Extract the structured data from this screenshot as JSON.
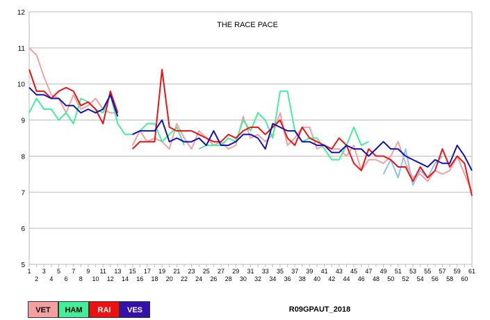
{
  "chart_data": {
    "type": "line",
    "title": "THE RACE PACE",
    "xlabel": "",
    "ylabel": "",
    "xlim": [
      1,
      61
    ],
    "ylim": [
      5,
      12
    ],
    "yticks": [
      5,
      6,
      7,
      8,
      9,
      10,
      11,
      12
    ],
    "grid": true,
    "series": [
      {
        "name": "VET",
        "color": "#f4a0a0",
        "points": [
          [
            1,
            11.0
          ],
          [
            2,
            10.8
          ],
          [
            3,
            10.2
          ],
          [
            4,
            9.7
          ],
          [
            5,
            9.6
          ],
          [
            6,
            9.2
          ],
          [
            7,
            9.7
          ],
          [
            8,
            9.3
          ],
          [
            9,
            9.4
          ],
          [
            10,
            9.6
          ],
          [
            11,
            9.3
          ],
          [
            12,
            9.2
          ],
          [
            13,
            9.2
          ],
          [
            15,
            8.3
          ],
          [
            16,
            8.7
          ],
          [
            17,
            8.4
          ],
          [
            18,
            8.5
          ],
          [
            19,
            8.4
          ],
          [
            20,
            8.2
          ],
          [
            21,
            8.9
          ],
          [
            22,
            8.5
          ],
          [
            23,
            8.2
          ],
          [
            24,
            8.7
          ],
          [
            25,
            8.5
          ],
          [
            26,
            8.3
          ],
          [
            27,
            8.4
          ],
          [
            28,
            8.2
          ],
          [
            29,
            8.3
          ],
          [
            30,
            9.1
          ],
          [
            31,
            8.5
          ],
          [
            32,
            8.6
          ],
          [
            33,
            8.4
          ],
          [
            34,
            8.6
          ],
          [
            35,
            9.2
          ],
          [
            36,
            8.3
          ],
          [
            37,
            8.5
          ],
          [
            38,
            8.8
          ],
          [
            39,
            8.8
          ],
          [
            40,
            8.2
          ],
          [
            41,
            8.3
          ],
          [
            42,
            8.2
          ],
          [
            43,
            8.2
          ],
          [
            44,
            8.0
          ],
          [
            45,
            8.3
          ],
          [
            46,
            7.6
          ],
          [
            47,
            7.9
          ],
          [
            48,
            7.9
          ],
          [
            49,
            7.8
          ],
          [
            50,
            8.0
          ],
          [
            51,
            8.4
          ],
          [
            52,
            7.8
          ],
          [
            53,
            7.4
          ],
          [
            54,
            7.5
          ],
          [
            55,
            7.3
          ],
          [
            56,
            7.6
          ],
          [
            57,
            7.5
          ],
          [
            58,
            7.6
          ],
          [
            59,
            8.0
          ],
          [
            60,
            7.5
          ],
          [
            61,
            7.0
          ]
        ]
      },
      {
        "name": "",
        "color": "#87c4f0",
        "points": [
          [
            49,
            7.5
          ],
          [
            50,
            7.9
          ],
          [
            51,
            7.4
          ],
          [
            52,
            8.2
          ],
          [
            53,
            7.2
          ],
          [
            54,
            7.6
          ],
          [
            55,
            7.4
          ],
          [
            56,
            7.8
          ],
          [
            57,
            8.0
          ]
        ]
      },
      {
        "name": "HAM",
        "color": "#44ee99",
        "points": [
          [
            1,
            9.2
          ],
          [
            2,
            9.6
          ],
          [
            3,
            9.3
          ],
          [
            4,
            9.3
          ],
          [
            5,
            9.0
          ],
          [
            6,
            9.2
          ],
          [
            7,
            8.9
          ],
          [
            8,
            9.6
          ],
          [
            9,
            9.5
          ],
          [
            10,
            9.3
          ],
          [
            11,
            9.2
          ],
          [
            12,
            9.7
          ],
          [
            13,
            8.9
          ],
          [
            14,
            8.6
          ],
          [
            15,
            8.6
          ],
          [
            16,
            8.7
          ],
          [
            17,
            8.9
          ],
          [
            18,
            8.9
          ],
          [
            19,
            8.4
          ],
          [
            20,
            8.6
          ],
          [
            21,
            8.8
          ],
          [
            22,
            8.3
          ],
          [
            24,
            8.2
          ],
          [
            25,
            8.3
          ],
          [
            26,
            8.3
          ],
          [
            27,
            8.3
          ],
          [
            28,
            8.5
          ],
          [
            29,
            8.4
          ],
          [
            30,
            9.0
          ],
          [
            31,
            8.7
          ],
          [
            32,
            9.2
          ],
          [
            33,
            9.0
          ],
          [
            34,
            8.5
          ],
          [
            35,
            9.8
          ],
          [
            36,
            9.8
          ],
          [
            37,
            8.7
          ],
          [
            38,
            8.4
          ],
          [
            39,
            8.5
          ],
          [
            40,
            8.5
          ],
          [
            41,
            8.2
          ],
          [
            42,
            7.9
          ],
          [
            43,
            7.9
          ],
          [
            44,
            8.3
          ],
          [
            45,
            8.8
          ],
          [
            46,
            8.3
          ],
          [
            47,
            8.4
          ]
        ]
      },
      {
        "name": "RAI",
        "color": "#ee1111",
        "points": [
          [
            1,
            10.4
          ],
          [
            2,
            9.8
          ],
          [
            3,
            9.8
          ],
          [
            4,
            9.6
          ],
          [
            5,
            9.8
          ],
          [
            6,
            9.9
          ],
          [
            7,
            9.8
          ],
          [
            8,
            9.4
          ],
          [
            9,
            9.5
          ],
          [
            10,
            9.3
          ],
          [
            11,
            8.9
          ],
          [
            12,
            9.8
          ],
          [
            13,
            9.2
          ],
          [
            15,
            8.2
          ],
          [
            16,
            8.4
          ],
          [
            17,
            8.4
          ],
          [
            18,
            8.4
          ],
          [
            19,
            10.4
          ],
          [
            20,
            8.8
          ],
          [
            21,
            8.7
          ],
          [
            22,
            8.7
          ],
          [
            23,
            8.7
          ],
          [
            24,
            8.6
          ],
          [
            25,
            8.5
          ],
          [
            26,
            8.4
          ],
          [
            27,
            8.4
          ],
          [
            28,
            8.6
          ],
          [
            29,
            8.5
          ],
          [
            30,
            8.7
          ],
          [
            31,
            8.8
          ],
          [
            32,
            8.8
          ],
          [
            33,
            8.6
          ],
          [
            34,
            8.8
          ],
          [
            35,
            9.0
          ],
          [
            36,
            8.5
          ],
          [
            37,
            8.3
          ],
          [
            38,
            8.8
          ],
          [
            39,
            8.5
          ],
          [
            40,
            8.4
          ],
          [
            41,
            8.3
          ],
          [
            42,
            8.2
          ],
          [
            43,
            8.5
          ],
          [
            44,
            8.3
          ],
          [
            45,
            7.8
          ],
          [
            46,
            7.6
          ],
          [
            47,
            8.2
          ],
          [
            48,
            8.0
          ],
          [
            49,
            8.0
          ],
          [
            50,
            7.9
          ],
          [
            51,
            7.7
          ],
          [
            52,
            7.7
          ],
          [
            53,
            7.3
          ],
          [
            54,
            7.7
          ],
          [
            55,
            7.4
          ],
          [
            56,
            7.6
          ],
          [
            57,
            8.2
          ],
          [
            58,
            7.7
          ],
          [
            59,
            8.0
          ],
          [
            60,
            7.8
          ],
          [
            61,
            6.9
          ]
        ]
      },
      {
        "name": "VES",
        "color": "#1111bb",
        "points": [
          [
            1,
            9.9
          ],
          [
            2,
            9.7
          ],
          [
            3,
            9.7
          ],
          [
            4,
            9.6
          ],
          [
            5,
            9.6
          ],
          [
            6,
            9.4
          ],
          [
            7,
            9.4
          ],
          [
            8,
            9.2
          ],
          [
            9,
            9.3
          ],
          [
            10,
            9.2
          ],
          [
            11,
            9.3
          ],
          [
            12,
            9.7
          ],
          [
            13,
            9.1
          ],
          [
            15,
            8.6
          ],
          [
            16,
            8.7
          ],
          [
            17,
            8.7
          ],
          [
            18,
            8.7
          ],
          [
            19,
            9.0
          ],
          [
            20,
            8.4
          ],
          [
            21,
            8.5
          ],
          [
            22,
            8.4
          ],
          [
            23,
            8.4
          ],
          [
            24,
            8.5
          ],
          [
            25,
            8.3
          ],
          [
            26,
            8.7
          ],
          [
            27,
            8.3
          ],
          [
            28,
            8.3
          ],
          [
            29,
            8.4
          ],
          [
            30,
            8.6
          ],
          [
            31,
            8.6
          ],
          [
            32,
            8.5
          ],
          [
            33,
            8.2
          ],
          [
            34,
            8.9
          ],
          [
            35,
            8.8
          ],
          [
            36,
            8.7
          ],
          [
            37,
            8.7
          ],
          [
            38,
            8.4
          ],
          [
            39,
            8.4
          ],
          [
            40,
            8.3
          ],
          [
            41,
            8.3
          ],
          [
            42,
            8.1
          ],
          [
            43,
            8.1
          ],
          [
            44,
            8.3
          ],
          [
            45,
            8.2
          ],
          [
            46,
            8.2
          ],
          [
            47,
            8.0
          ],
          [
            48,
            8.2
          ],
          [
            49,
            8.4
          ],
          [
            50,
            8.2
          ],
          [
            51,
            8.2
          ],
          [
            52,
            8.0
          ],
          [
            53,
            7.9
          ],
          [
            54,
            7.8
          ],
          [
            55,
            7.7
          ],
          [
            56,
            7.9
          ],
          [
            57,
            7.8
          ],
          [
            58,
            7.8
          ],
          [
            59,
            8.3
          ],
          [
            60,
            8.0
          ],
          [
            61,
            7.6
          ]
        ]
      }
    ]
  },
  "legend": [
    {
      "label": "VET",
      "bg": "#f4a0a0",
      "fg": "#000000"
    },
    {
      "label": "HAM",
      "bg": "#44ee99",
      "fg": "#000000"
    },
    {
      "label": "RAI",
      "bg": "#ee1111",
      "fg": "#ffffff"
    },
    {
      "label": "VES",
      "bg": "#3311aa",
      "fg": "#ffffff"
    }
  ],
  "race_code": "R09GPAUT_2018"
}
